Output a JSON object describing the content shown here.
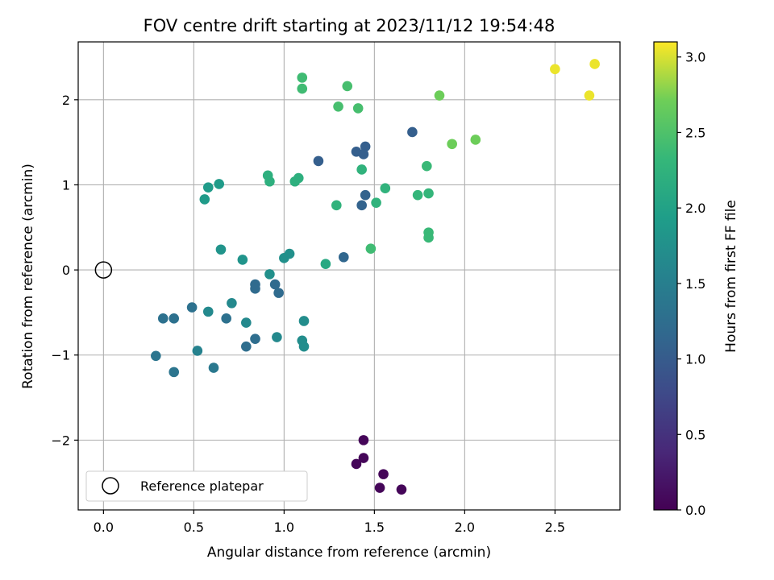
{
  "chart_data": {
    "type": "scatter",
    "title": "FOV centre drift starting at 2023/11/12 19:54:48",
    "xlabel": "Angular distance from reference (arcmin)",
    "ylabel": "Rotation from reference (arcmin)",
    "xlim": [
      -0.14,
      2.86
    ],
    "ylim": [
      -2.82,
      2.68
    ],
    "xticks": [
      0.0,
      0.5,
      1.0,
      1.5,
      2.0,
      2.5
    ],
    "xtick_labels": [
      "0.0",
      "0.5",
      "1.0",
      "1.5",
      "2.0",
      "2.5"
    ],
    "yticks": [
      -2,
      -1,
      0,
      1,
      2
    ],
    "ytick_labels": [
      "−2",
      "−1",
      "0",
      "1",
      "2"
    ],
    "grid": true,
    "colorbar": {
      "label": "Hours from first FF file",
      "colormap": "viridis",
      "range": [
        0.0,
        3.1
      ],
      "ticks": [
        0.0,
        0.5,
        1.0,
        1.5,
        2.0,
        2.5,
        3.0
      ],
      "tick_labels": [
        "0.0",
        "0.5",
        "1.0",
        "1.5",
        "2.0",
        "2.5",
        "3.0"
      ]
    },
    "legend": {
      "position": "lower-left",
      "entries": [
        "Reference platepar"
      ]
    },
    "reference_point": {
      "x": 0.0,
      "y": 0.0,
      "label": "Reference platepar"
    },
    "points": [
      {
        "x": 1.44,
        "y": -2.0,
        "c": 0.05
      },
      {
        "x": 1.4,
        "y": -2.28,
        "c": 0.05
      },
      {
        "x": 1.44,
        "y": -2.21,
        "c": 0.05
      },
      {
        "x": 1.55,
        "y": -2.4,
        "c": 0.05
      },
      {
        "x": 1.53,
        "y": -2.56,
        "c": 0.05
      },
      {
        "x": 1.65,
        "y": -2.58,
        "c": 0.05
      },
      {
        "x": 1.71,
        "y": 1.62,
        "c": 1.05
      },
      {
        "x": 1.45,
        "y": 1.45,
        "c": 1.05
      },
      {
        "x": 1.4,
        "y": 1.39,
        "c": 1.05
      },
      {
        "x": 1.44,
        "y": 1.36,
        "c": 1.05
      },
      {
        "x": 1.19,
        "y": 1.28,
        "c": 1.05
      },
      {
        "x": 1.45,
        "y": 0.88,
        "c": 1.1
      },
      {
        "x": 1.43,
        "y": 0.76,
        "c": 1.1
      },
      {
        "x": 1.33,
        "y": 0.15,
        "c": 1.15
      },
      {
        "x": 0.84,
        "y": -0.17,
        "c": 1.2
      },
      {
        "x": 0.84,
        "y": -0.22,
        "c": 1.2
      },
      {
        "x": 0.95,
        "y": -0.17,
        "c": 1.2
      },
      {
        "x": 0.97,
        "y": -0.27,
        "c": 1.2
      },
      {
        "x": 0.84,
        "y": -0.81,
        "c": 1.25
      },
      {
        "x": 0.79,
        "y": -0.9,
        "c": 1.25
      },
      {
        "x": 0.68,
        "y": -0.57,
        "c": 1.3
      },
      {
        "x": 0.49,
        "y": -0.44,
        "c": 1.3
      },
      {
        "x": 0.33,
        "y": -0.57,
        "c": 1.3
      },
      {
        "x": 0.39,
        "y": -0.57,
        "c": 1.3
      },
      {
        "x": 0.29,
        "y": -1.01,
        "c": 1.35
      },
      {
        "x": 0.39,
        "y": -1.2,
        "c": 1.35
      },
      {
        "x": 0.61,
        "y": -1.15,
        "c": 1.4
      },
      {
        "x": 0.52,
        "y": -0.95,
        "c": 1.55
      },
      {
        "x": 0.58,
        "y": -0.49,
        "c": 1.65
      },
      {
        "x": 0.71,
        "y": -0.39,
        "c": 1.65
      },
      {
        "x": 0.79,
        "y": -0.62,
        "c": 1.65
      },
      {
        "x": 0.96,
        "y": -0.79,
        "c": 1.65
      },
      {
        "x": 1.11,
        "y": -0.6,
        "c": 1.7
      },
      {
        "x": 1.1,
        "y": -0.83,
        "c": 1.7
      },
      {
        "x": 1.11,
        "y": -0.9,
        "c": 1.7
      },
      {
        "x": 0.92,
        "y": -0.05,
        "c": 1.75
      },
      {
        "x": 1.0,
        "y": 0.14,
        "c": 1.75
      },
      {
        "x": 1.03,
        "y": 0.19,
        "c": 1.75
      },
      {
        "x": 0.77,
        "y": 0.12,
        "c": 1.8
      },
      {
        "x": 0.65,
        "y": 0.24,
        "c": 1.8
      },
      {
        "x": 0.64,
        "y": 1.01,
        "c": 1.9
      },
      {
        "x": 0.58,
        "y": 0.97,
        "c": 1.9
      },
      {
        "x": 0.56,
        "y": 0.83,
        "c": 1.9
      },
      {
        "x": 1.23,
        "y": 0.07,
        "c": 2.1
      },
      {
        "x": 0.91,
        "y": 1.11,
        "c": 2.2
      },
      {
        "x": 0.92,
        "y": 1.04,
        "c": 2.2
      },
      {
        "x": 1.06,
        "y": 1.04,
        "c": 2.2
      },
      {
        "x": 1.08,
        "y": 1.08,
        "c": 2.2
      },
      {
        "x": 1.43,
        "y": 1.18,
        "c": 2.25
      },
      {
        "x": 1.29,
        "y": 0.76,
        "c": 2.25
      },
      {
        "x": 1.51,
        "y": 0.79,
        "c": 2.25
      },
      {
        "x": 1.56,
        "y": 0.96,
        "c": 2.25
      },
      {
        "x": 1.74,
        "y": 0.88,
        "c": 2.3
      },
      {
        "x": 1.8,
        "y": 0.9,
        "c": 2.3
      },
      {
        "x": 1.8,
        "y": 0.44,
        "c": 2.35
      },
      {
        "x": 1.8,
        "y": 0.38,
        "c": 2.35
      },
      {
        "x": 1.79,
        "y": 1.22,
        "c": 2.35
      },
      {
        "x": 1.48,
        "y": 0.25,
        "c": 2.4
      },
      {
        "x": 1.1,
        "y": 2.26,
        "c": 2.4
      },
      {
        "x": 1.1,
        "y": 2.13,
        "c": 2.4
      },
      {
        "x": 1.35,
        "y": 2.16,
        "c": 2.45
      },
      {
        "x": 1.3,
        "y": 1.92,
        "c": 2.45
      },
      {
        "x": 1.41,
        "y": 1.9,
        "c": 2.45
      },
      {
        "x": 1.86,
        "y": 2.05,
        "c": 2.7
      },
      {
        "x": 1.93,
        "y": 1.48,
        "c": 2.7
      },
      {
        "x": 2.06,
        "y": 1.53,
        "c": 2.7
      },
      {
        "x": 2.5,
        "y": 2.36,
        "c": 3.05
      },
      {
        "x": 2.72,
        "y": 2.42,
        "c": 3.05
      },
      {
        "x": 2.69,
        "y": 2.05,
        "c": 3.05
      }
    ]
  }
}
